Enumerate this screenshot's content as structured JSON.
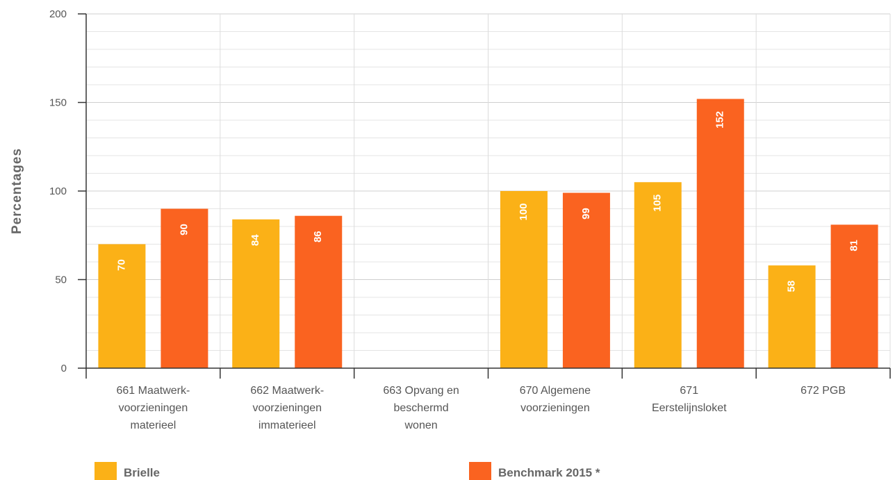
{
  "chart_data": {
    "type": "bar",
    "ylabel": "Percentages",
    "xlabel": "",
    "title": "",
    "ylim": [
      0,
      200
    ],
    "yticks": [
      0,
      50,
      100,
      150,
      200
    ],
    "minor_grid_step": 10,
    "grid": true,
    "legend_position": "bottom",
    "categories": [
      [
        "661 Maatwerk-",
        "voorzieningen",
        "materieel"
      ],
      [
        "662 Maatwerk-",
        "voorzieningen",
        "immaterieel"
      ],
      [
        "663 Opvang en",
        "beschermd",
        "wonen"
      ],
      [
        "670 Algemene",
        "voorzieningen"
      ],
      [
        "671",
        "Eerstelijnsloket"
      ],
      [
        "672 PGB"
      ]
    ],
    "series": [
      {
        "name": "Brielle",
        "color": "#fbb117",
        "values": [
          70,
          84,
          null,
          100,
          105,
          58
        ]
      },
      {
        "name": "Benchmark 2015 *",
        "color": "#fa6320",
        "values": [
          90,
          86,
          null,
          99,
          152,
          81
        ]
      }
    ]
  }
}
